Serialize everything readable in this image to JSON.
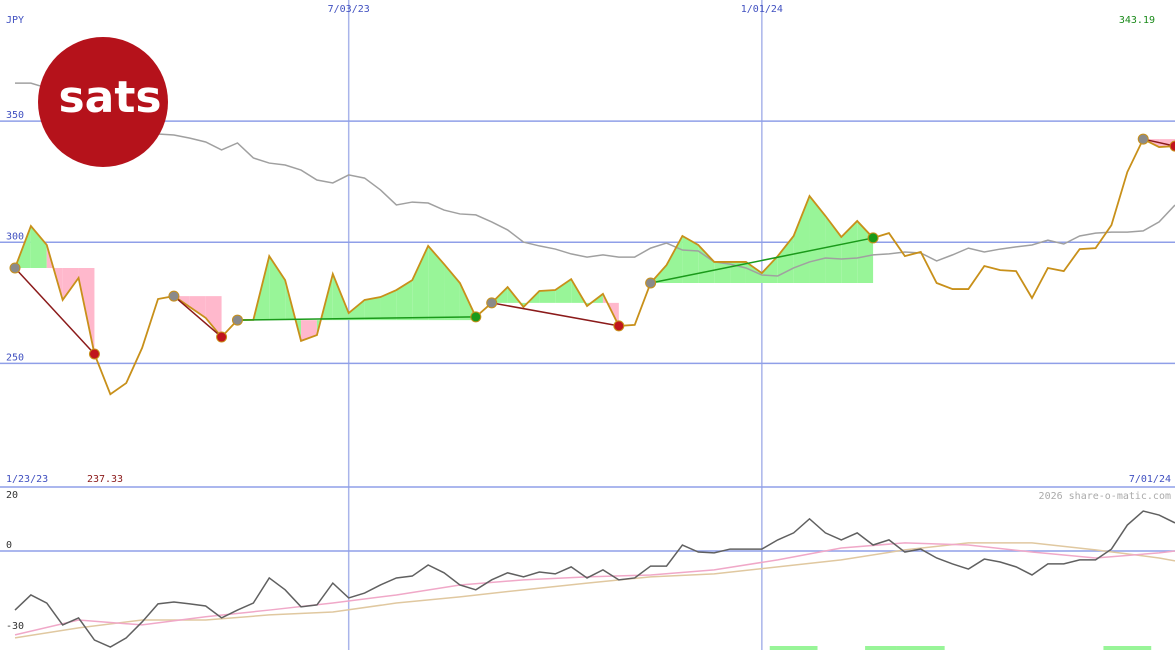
{
  "logo": "sats",
  "chart_data": [
    {
      "type": "line",
      "unit_label": "JPY",
      "ylim": [
        199,
        400
      ],
      "yticks": [
        250,
        300,
        350
      ],
      "grid": true,
      "xlim": [
        0,
        73
      ],
      "xticks": [
        {
          "value": 21,
          "label": "7/03/23"
        },
        {
          "value": 47,
          "label": "1/01/24"
        }
      ],
      "range_labels": [
        "1/23/23",
        "7/01/24"
      ],
      "annotations": [
        {
          "text": "343.19",
          "color": "#1a8a1a"
        },
        {
          "text": "237.33",
          "color": "#8b1a1a"
        }
      ],
      "series": [
        {
          "color": "#c8901a",
          "values": [
            289.4,
            306.7,
            298.9,
            276.2,
            285.3,
            253.9,
            237.3,
            241.9,
            256.4,
            276.6,
            277.8,
            273.3,
            268.8,
            260.9,
            267.9,
            268,
            294.3,
            284.4,
            259.3,
            261.7,
            286.9,
            270.8,
            276.2,
            277.4,
            280.3,
            284.4,
            298.5,
            291,
            283.2,
            269.2,
            275,
            281.5,
            273.3,
            279.9,
            280.3,
            284.8,
            273.7,
            278.7,
            265.5,
            265.9,
            283.2,
            290.6,
            302.6,
            298.9,
            291.9,
            291.9,
            291.9,
            287.3,
            294.3,
            302.6,
            319.1,
            310.9,
            302.2,
            308.8,
            301.8,
            303.8,
            294.3,
            296,
            283.2,
            280.7,
            280.7,
            290.2,
            288.5,
            288.1,
            277,
            289.4,
            288.1,
            297.2,
            297.6,
            307.1,
            329,
            342.6,
            339.3,
            339.7
          ]
        },
        {
          "color": "#a0a0a0",
          "values": [
            365.7,
            365.7,
            363.7,
            362.0,
            360.4,
            358.7,
            354.6,
            348.4,
            345.1,
            344.7,
            344.3,
            343.0,
            341.4,
            338.1,
            341.0,
            334.8,
            332.7,
            331.9,
            329.8,
            325.7,
            324.5,
            327.8,
            326.5,
            321.6,
            315.4,
            316.6,
            316.2,
            313.3,
            311.7,
            311.3,
            308.4,
            305.1,
            300.1,
            298.5,
            297.2,
            295.2,
            293.9,
            294.8,
            293.9,
            293.9,
            297.6,
            299.7,
            296.8,
            296.4,
            291.9,
            291.0,
            289.4,
            286.5,
            286.1,
            289.4,
            291.9,
            293.5,
            293.1,
            293.5,
            294.8,
            295.2,
            296.0,
            295.6,
            292.3,
            294.8,
            297.6,
            296.0,
            297.2,
            298.1,
            298.9,
            300.9,
            299.3,
            302.6,
            303.8,
            304.2,
            304.2,
            304.7,
            308.4,
            315.4
          ]
        }
      ],
      "trades": [
        {
          "entry": 0,
          "exit": 5
        },
        {
          "entry": 10,
          "exit": 13
        },
        {
          "entry": 14,
          "exit": 29
        },
        {
          "entry": 30,
          "exit": 38
        },
        {
          "entry": 40,
          "exit": 54
        },
        {
          "entry": 71,
          "exit": 73
        }
      ]
    },
    {
      "type": "line",
      "watermark": "2026 share-o-matic.com",
      "ylim": [
        -36.7,
        23.7
      ],
      "yticks": [
        -30,
        0,
        20
      ],
      "grid_values": [
        0
      ],
      "series": [
        {
          "color": "#606060",
          "values": [
            -21.9,
            -16.3,
            -19.3,
            -27.4,
            -24.8,
            -33.0,
            -35.6,
            -32.2,
            -26.3,
            -19.6,
            -18.9,
            -19.6,
            -20.4,
            -24.8,
            -21.9,
            -19.3,
            -10.0,
            -14.4,
            -20.7,
            -20.0,
            -11.9,
            -17.4,
            -15.6,
            -12.6,
            -10.0,
            -9.3,
            -5.2,
            -8.1,
            -12.6,
            -14.4,
            -10.7,
            -8.1,
            -9.6,
            -7.8,
            -8.5,
            -5.9,
            -10.0,
            -7.0,
            -10.7,
            -10.0,
            -5.6,
            -5.6,
            2.2,
            -0.4,
            -0.7,
            0.7,
            0.7,
            0.7,
            4.1,
            6.7,
            11.9,
            6.7,
            4.1,
            6.7,
            2.2,
            4.1,
            -0.4,
            0.7,
            -2.6,
            -4.8,
            -6.7,
            -3.0,
            -4.1,
            -5.9,
            -8.9,
            -4.8,
            -4.8,
            -3.3,
            -3.3,
            0.7,
            9.6,
            14.8,
            13.3,
            10.4
          ]
        },
        {
          "color": "#f0a8c8",
          "x": [
            0,
            4,
            8,
            12,
            16,
            20,
            24,
            28,
            32,
            36,
            40,
            44,
            48,
            52,
            56,
            60,
            64,
            68,
            72,
            73
          ],
          "values": [
            -31.1,
            -25.6,
            -27.4,
            -24.4,
            -21.9,
            -19.3,
            -16.3,
            -12.6,
            -10.7,
            -9.6,
            -8.9,
            -7.0,
            -3.3,
            1.1,
            3.0,
            2.2,
            -0.4,
            -2.6,
            -0.7,
            0
          ]
        },
        {
          "color": "#e0c8a0",
          "x": [
            0,
            4,
            8,
            12,
            16,
            20,
            24,
            28,
            32,
            36,
            40,
            44,
            48,
            52,
            56,
            60,
            64,
            68,
            72,
            73
          ],
          "values": [
            -32.2,
            -28.5,
            -25.6,
            -25.6,
            -23.7,
            -22.6,
            -19.3,
            -17.0,
            -14.4,
            -11.9,
            -9.6,
            -8.5,
            -5.9,
            -3.3,
            0.4,
            3.0,
            3.0,
            0.4,
            -2.6,
            -3.7
          ]
        }
      ],
      "signal_bands": [
        [
          48,
          50
        ],
        [
          54,
          55
        ],
        [
          56,
          58
        ],
        [
          69,
          71
        ]
      ]
    }
  ]
}
